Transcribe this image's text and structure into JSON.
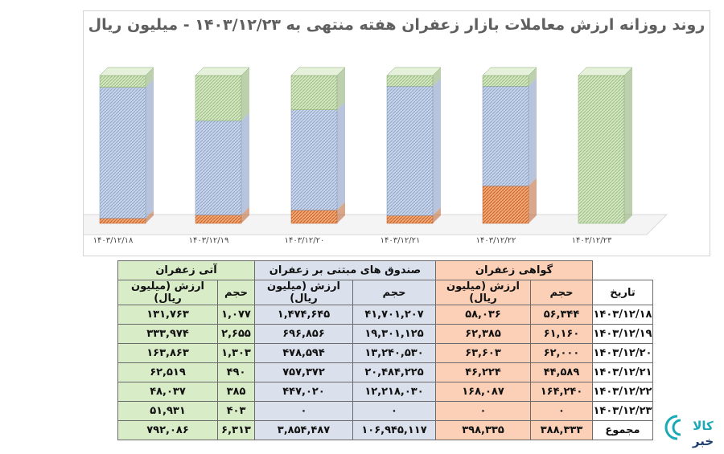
{
  "chart_data": {
    "type": "bar",
    "title": "روند روزانه ارزش معاملات بازار زعفران هفته منتهی به ۱۴۰۳/۱۲/۲۳ - میلیون ریال",
    "stacked_percent": true,
    "categories": [
      "۱۴۰۳/۱۲/۱۸",
      "۱۴۰۳/۱۲/۱۹",
      "۱۴۰۳/۱۲/۲۰",
      "۱۴۰۳/۱۲/۲۱",
      "۱۴۰۳/۱۲/۲۲",
      "۱۴۰۳/۱۲/۲۳"
    ],
    "series": [
      {
        "name": "گواهی زعفران",
        "color": "#e8854a",
        "values": [
          58036,
          62385,
          63603,
          46224,
          168087,
          0
        ]
      },
      {
        "name": "صندوق های مبتنی بر زعفران",
        "color": "#9db3d6",
        "values": [
          1474645,
          696856,
          478594,
          757372,
          447020,
          0
        ]
      },
      {
        "name": "آتی زعفران",
        "color": "#a9cd8f",
        "values": [
          131763,
          333974,
          163863,
          62519,
          48037,
          51931
        ]
      }
    ]
  },
  "table": {
    "header_groups": {
      "certificate": "گواهی زعفران",
      "funds": "صندوق های مبتنی بر زعفران",
      "futures": "آتی زعفران"
    },
    "date_header": "تاریخ",
    "volume_label": "حجم",
    "value_label": "ارزش (میلیون ریال)",
    "rows": [
      {
        "date": "۱۴۰۳/۱۲/۱۸",
        "cert_vol": "۵۶,۳۴۴",
        "cert_val": "۵۸,۰۳۶",
        "fund_vol": "۴۱,۷۰۱,۲۰۷",
        "fund_val": "۱,۴۷۴,۶۴۵",
        "fut_vol": "۱,۰۷۷",
        "fut_val": "۱۳۱,۷۶۳"
      },
      {
        "date": "۱۴۰۳/۱۲/۱۹",
        "cert_vol": "۶۱,۱۶۰",
        "cert_val": "۶۲,۳۸۵",
        "fund_vol": "۱۹,۳۰۱,۱۲۵",
        "fund_val": "۶۹۶,۸۵۶",
        "fut_vol": "۲,۶۵۵",
        "fut_val": "۳۳۳,۹۷۴"
      },
      {
        "date": "۱۴۰۳/۱۲/۲۰",
        "cert_vol": "۶۲,۰۰۰",
        "cert_val": "۶۳,۶۰۳",
        "fund_vol": "۱۳,۲۴۰,۵۳۰",
        "fund_val": "۴۷۸,۵۹۴",
        "fut_vol": "۱,۳۰۳",
        "fut_val": "۱۶۳,۸۶۳"
      },
      {
        "date": "۱۴۰۳/۱۲/۲۱",
        "cert_vol": "۴۴,۵۸۹",
        "cert_val": "۴۶,۲۲۴",
        "fund_vol": "۲۰,۴۸۴,۲۲۵",
        "fund_val": "۷۵۷,۳۷۲",
        "fut_vol": "۴۹۰",
        "fut_val": "۶۲,۵۱۹"
      },
      {
        "date": "۱۴۰۳/۱۲/۲۲",
        "cert_vol": "۱۶۴,۲۴۰",
        "cert_val": "۱۶۸,۰۸۷",
        "fund_vol": "۱۲,۲۱۸,۰۳۰",
        "fund_val": "۴۴۷,۰۲۰",
        "fut_vol": "۳۸۵",
        "fut_val": "۴۸,۰۳۷"
      },
      {
        "date": "۱۴۰۳/۱۲/۲۳",
        "cert_vol": "۰",
        "cert_val": "۰",
        "fund_vol": "۰",
        "fund_val": "۰",
        "fut_vol": "۴۰۳",
        "fut_val": "۵۱,۹۳۱"
      }
    ],
    "total": {
      "label": "مجموع",
      "cert_vol": "۳۸۸,۳۳۳",
      "cert_val": "۳۹۸,۳۳۵",
      "fund_vol": "۱۰۶,۹۴۵,۱۱۷",
      "fund_val": "۳,۸۵۴,۴۸۷",
      "fut_vol": "۶,۳۱۳",
      "fut_val": "۷۹۲,۰۸۶"
    }
  },
  "logo": {
    "text_top": "کالا",
    "text_bottom": "خبر",
    "colors": {
      "teal": "#1ba9b5",
      "dark": "#1f3f6e"
    }
  }
}
